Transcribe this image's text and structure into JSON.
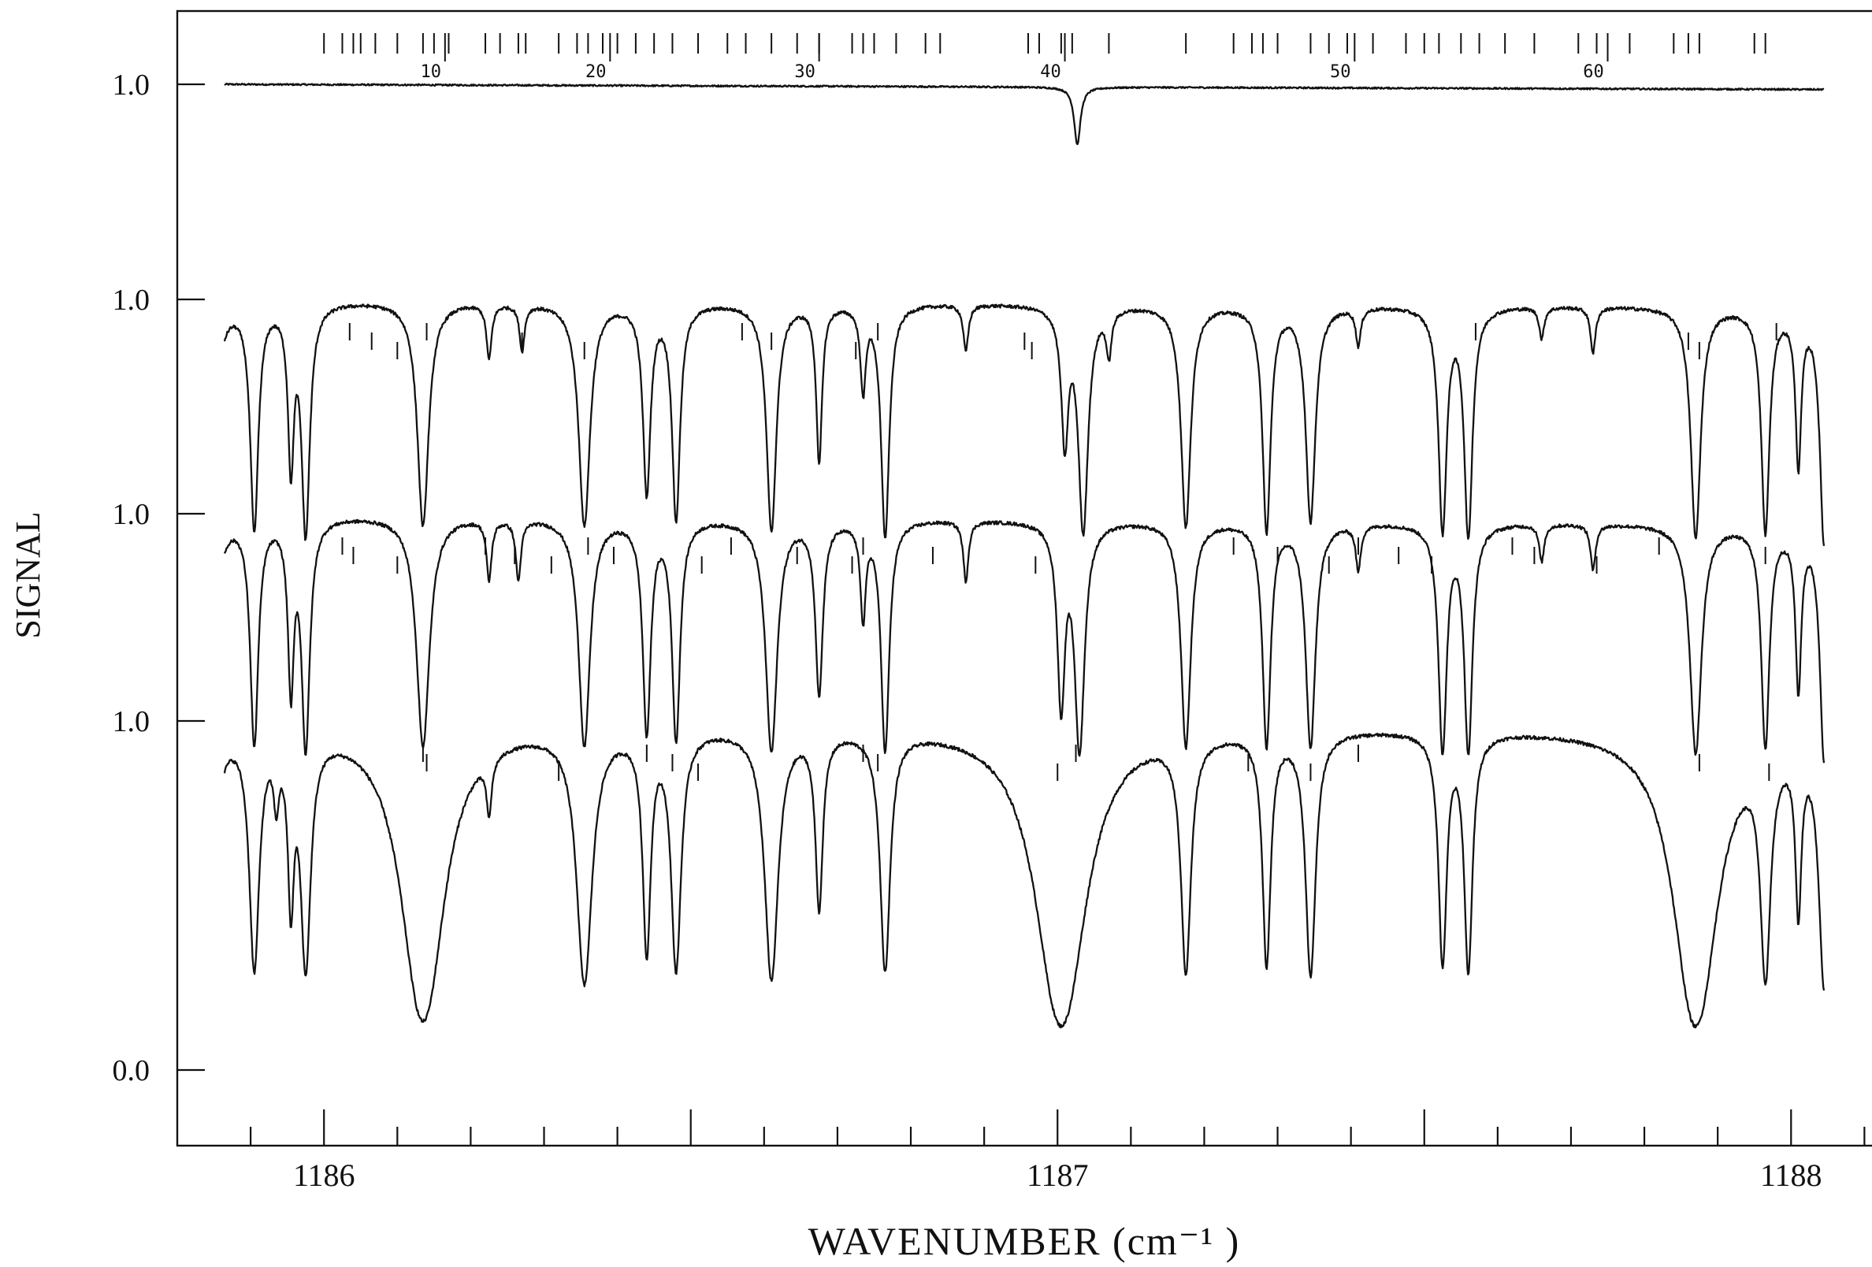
{
  "chart_data": {
    "type": "line",
    "title": "",
    "xlabel": "WAVENUMBER (cm⁻¹ )",
    "ylabel": "SIGNAL",
    "xlim": [
      1185.8,
      1188.12
    ],
    "x_ticks": [
      1186,
      1187,
      1188
    ],
    "x_tick_labels": [
      "1186",
      "1187",
      "1188"
    ],
    "x_minor_step": 0.1,
    "grid": false,
    "line_index_labels": [
      {
        "n": 10,
        "x": 1186.165
      },
      {
        "n": 20,
        "x": 1186.39
      },
      {
        "n": 30,
        "x": 1186.675
      },
      {
        "n": 40,
        "x": 1187.01
      },
      {
        "n": 50,
        "x": 1187.405
      },
      {
        "n": 60,
        "x": 1187.75
      }
    ],
    "line_index_ticks": [
      1186.0,
      1186.025,
      1186.04,
      1186.05,
      1186.07,
      1186.1,
      1186.135,
      1186.15,
      1186.17,
      1186.22,
      1186.24,
      1186.265,
      1186.275,
      1186.32,
      1186.345,
      1186.36,
      1186.38,
      1186.4,
      1186.425,
      1186.45,
      1186.475,
      1186.51,
      1186.55,
      1186.575,
      1186.61,
      1186.645,
      1186.675,
      1186.72,
      1186.735,
      1186.75,
      1186.78,
      1186.82,
      1186.84,
      1186.96,
      1186.975,
      1187.005,
      1187.02,
      1187.07,
      1187.175,
      1187.24,
      1187.265,
      1187.28,
      1187.3,
      1187.345,
      1187.37,
      1187.395,
      1187.43,
      1187.475,
      1187.5,
      1187.52,
      1187.55,
      1187.575,
      1187.61,
      1187.65,
      1187.71,
      1187.735,
      1187.78,
      1187.84,
      1187.86,
      1187.875,
      1187.95,
      1187.965
    ],
    "panels": [
      {
        "y_tick_labels": [
          "1.0"
        ],
        "baseline": 1.0,
        "baseline_end": 0.96,
        "lines": [
          {
            "x": 1187.027,
            "depth": 0.6,
            "width": 0.0045
          }
        ],
        "marks": []
      },
      {
        "y_tick_labels": [
          "1.0"
        ],
        "baseline": 1.0,
        "baseline_end": 0.98,
        "lines": [
          {
            "x": 1185.845,
            "depth": 1.25,
            "width": 0.006
          },
          {
            "x": 1185.905,
            "depth": 1.15,
            "width": 0.005
          },
          {
            "x": 1185.955,
            "depth": 0.7,
            "width": 0.004
          },
          {
            "x": 1185.975,
            "depth": 1.2,
            "width": 0.005
          },
          {
            "x": 1186.135,
            "depth": 1.1,
            "width": 0.007
          },
          {
            "x": 1186.225,
            "depth": 0.18,
            "width": 0.004
          },
          {
            "x": 1186.27,
            "depth": 0.15,
            "width": 0.004
          },
          {
            "x": 1186.355,
            "depth": 1.1,
            "width": 0.007
          },
          {
            "x": 1186.44,
            "depth": 0.85,
            "width": 0.005
          },
          {
            "x": 1186.48,
            "depth": 1.05,
            "width": 0.005
          },
          {
            "x": 1186.61,
            "depth": 1.15,
            "width": 0.006
          },
          {
            "x": 1186.675,
            "depth": 0.65,
            "width": 0.004
          },
          {
            "x": 1186.735,
            "depth": 0.3,
            "width": 0.004
          },
          {
            "x": 1186.765,
            "depth": 1.2,
            "width": 0.005
          },
          {
            "x": 1186.875,
            "depth": 0.15,
            "width": 0.004
          },
          {
            "x": 1187.01,
            "depth": 0.55,
            "width": 0.005
          },
          {
            "x": 1187.035,
            "depth": 1.15,
            "width": 0.006
          },
          {
            "x": 1187.07,
            "depth": 0.15,
            "width": 0.004
          },
          {
            "x": 1187.175,
            "depth": 1.1,
            "width": 0.006
          },
          {
            "x": 1187.285,
            "depth": 1.15,
            "width": 0.005
          },
          {
            "x": 1187.345,
            "depth": 1.05,
            "width": 0.006
          },
          {
            "x": 1187.41,
            "depth": 0.12,
            "width": 0.004
          },
          {
            "x": 1187.525,
            "depth": 1.15,
            "width": 0.005
          },
          {
            "x": 1187.56,
            "depth": 1.2,
            "width": 0.005
          },
          {
            "x": 1187.66,
            "depth": 0.1,
            "width": 0.004
          },
          {
            "x": 1187.73,
            "depth": 0.15,
            "width": 0.004
          },
          {
            "x": 1187.87,
            "depth": 1.2,
            "width": 0.006
          },
          {
            "x": 1187.965,
            "depth": 1.15,
            "width": 0.005
          },
          {
            "x": 1188.01,
            "depth": 0.65,
            "width": 0.004
          },
          {
            "x": 1188.045,
            "depth": 1.25,
            "width": 0.005
          },
          {
            "x": 1188.08,
            "depth": 1.05,
            "width": 0.004
          },
          {
            "x": 1188.105,
            "depth": 0.95,
            "width": 0.004
          }
        ],
        "marks": [
          1186.035,
          1186.065,
          1186.1,
          1186.14,
          1186.27,
          1186.355,
          1186.57,
          1186.61,
          1186.725,
          1186.755,
          1186.955,
          1186.965,
          1187.57,
          1187.86,
          1187.875,
          1187.98
        ]
      },
      {
        "y_tick_labels": [
          "1.0"
        ],
        "baseline": 1.0,
        "baseline_end": 0.97,
        "lines": [
          {
            "x": 1185.845,
            "depth": 1.2,
            "width": 0.006
          },
          {
            "x": 1185.905,
            "depth": 1.15,
            "width": 0.005
          },
          {
            "x": 1185.955,
            "depth": 0.75,
            "width": 0.004
          },
          {
            "x": 1185.975,
            "depth": 1.2,
            "width": 0.005
          },
          {
            "x": 1186.135,
            "depth": 1.15,
            "width": 0.008
          },
          {
            "x": 1186.225,
            "depth": 0.2,
            "width": 0.004
          },
          {
            "x": 1186.265,
            "depth": 0.2,
            "width": 0.004
          },
          {
            "x": 1186.355,
            "depth": 1.15,
            "width": 0.007
          },
          {
            "x": 1186.44,
            "depth": 1.05,
            "width": 0.005
          },
          {
            "x": 1186.48,
            "depth": 1.1,
            "width": 0.005
          },
          {
            "x": 1186.61,
            "depth": 1.2,
            "width": 0.007
          },
          {
            "x": 1186.675,
            "depth": 0.75,
            "width": 0.005
          },
          {
            "x": 1186.735,
            "depth": 0.35,
            "width": 0.004
          },
          {
            "x": 1186.765,
            "depth": 1.2,
            "width": 0.005
          },
          {
            "x": 1186.875,
            "depth": 0.2,
            "width": 0.004
          },
          {
            "x": 1187.005,
            "depth": 0.85,
            "width": 0.005
          },
          {
            "x": 1187.03,
            "depth": 1.2,
            "width": 0.006
          },
          {
            "x": 1187.175,
            "depth": 1.15,
            "width": 0.006
          },
          {
            "x": 1187.285,
            "depth": 1.15,
            "width": 0.005
          },
          {
            "x": 1187.345,
            "depth": 1.15,
            "width": 0.006
          },
          {
            "x": 1187.41,
            "depth": 0.15,
            "width": 0.004
          },
          {
            "x": 1187.525,
            "depth": 1.2,
            "width": 0.005
          },
          {
            "x": 1187.56,
            "depth": 1.2,
            "width": 0.005
          },
          {
            "x": 1187.66,
            "depth": 0.12,
            "width": 0.004
          },
          {
            "x": 1187.73,
            "depth": 0.15,
            "width": 0.004
          },
          {
            "x": 1187.87,
            "depth": 1.2,
            "width": 0.007
          },
          {
            "x": 1187.965,
            "depth": 1.15,
            "width": 0.005
          },
          {
            "x": 1188.01,
            "depth": 0.7,
            "width": 0.004
          },
          {
            "x": 1188.045,
            "depth": 1.25,
            "width": 0.005
          },
          {
            "x": 1188.08,
            "depth": 1.1,
            "width": 0.004
          },
          {
            "x": 1188.105,
            "depth": 1.0,
            "width": 0.004
          }
        ],
        "marks": [
          1186.025,
          1186.04,
          1186.1,
          1186.22,
          1186.26,
          1186.31,
          1186.36,
          1186.395,
          1186.515,
          1186.555,
          1186.645,
          1186.72,
          1186.735,
          1186.83,
          1186.97,
          1187.24,
          1187.3,
          1187.37,
          1187.41,
          1187.465,
          1187.51,
          1187.62,
          1187.65,
          1187.735,
          1187.82,
          1187.965
        ]
      },
      {
        "y_tick_labels": [
          "1.0",
          "0.0"
        ],
        "baseline": 1.0,
        "baseline_end": 0.98,
        "lines": [
          {
            "x": 1185.845,
            "depth": 1.3,
            "width": 0.006
          },
          {
            "x": 1185.905,
            "depth": 1.25,
            "width": 0.006
          },
          {
            "x": 1185.935,
            "depth": 0.2,
            "width": 0.004
          },
          {
            "x": 1185.955,
            "depth": 0.75,
            "width": 0.004
          },
          {
            "x": 1185.975,
            "depth": 1.25,
            "width": 0.006
          },
          {
            "x": 1186.135,
            "depth": 2.0,
            "width": 0.022
          },
          {
            "x": 1186.225,
            "depth": 0.2,
            "width": 0.004
          },
          {
            "x": 1186.355,
            "depth": 1.4,
            "width": 0.009
          },
          {
            "x": 1186.44,
            "depth": 1.1,
            "width": 0.005
          },
          {
            "x": 1186.48,
            "depth": 1.25,
            "width": 0.006
          },
          {
            "x": 1186.61,
            "depth": 1.35,
            "width": 0.008
          },
          {
            "x": 1186.675,
            "depth": 0.75,
            "width": 0.005
          },
          {
            "x": 1186.765,
            "depth": 1.25,
            "width": 0.006
          },
          {
            "x": 1187.005,
            "depth": 2.1,
            "width": 0.025
          },
          {
            "x": 1187.175,
            "depth": 1.25,
            "width": 0.006
          },
          {
            "x": 1187.285,
            "depth": 1.2,
            "width": 0.005
          },
          {
            "x": 1187.345,
            "depth": 1.3,
            "width": 0.006
          },
          {
            "x": 1187.525,
            "depth": 1.2,
            "width": 0.005
          },
          {
            "x": 1187.56,
            "depth": 1.25,
            "width": 0.005
          },
          {
            "x": 1187.87,
            "depth": 2.1,
            "width": 0.022
          },
          {
            "x": 1187.965,
            "depth": 1.3,
            "width": 0.006
          },
          {
            "x": 1188.01,
            "depth": 0.75,
            "width": 0.004
          },
          {
            "x": 1188.045,
            "depth": 1.4,
            "width": 0.006
          },
          {
            "x": 1188.08,
            "depth": 1.15,
            "width": 0.004
          },
          {
            "x": 1188.105,
            "depth": 1.05,
            "width": 0.004
          }
        ],
        "marks": [
          1186.135,
          1186.14,
          1186.32,
          1186.44,
          1186.475,
          1186.51,
          1186.735,
          1186.755,
          1187.0,
          1187.025,
          1187.26,
          1187.345,
          1187.41,
          1187.875,
          1187.97
        ]
      }
    ]
  }
}
